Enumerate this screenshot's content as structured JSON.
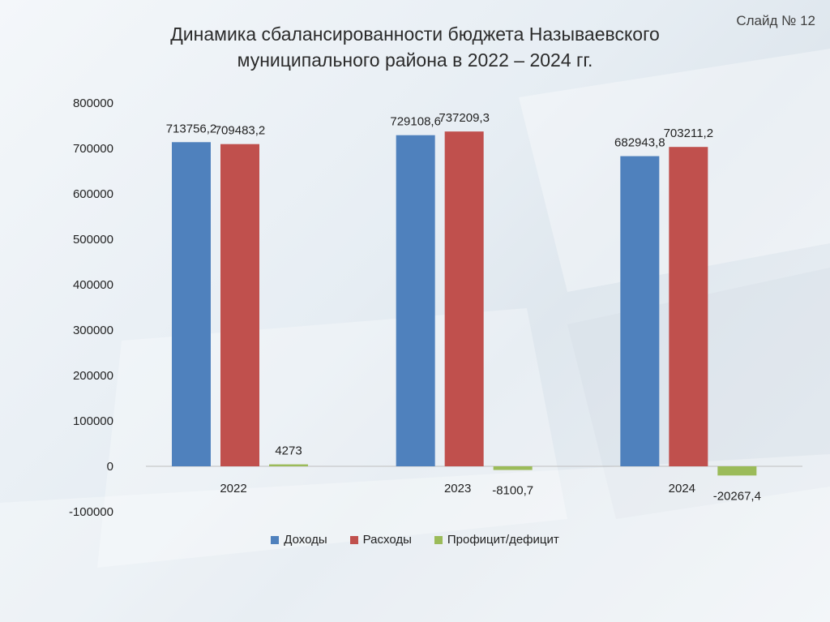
{
  "slide_label": "Слайд № 12",
  "title_lines": [
    "Динамика сбалансированности бюджета Называевского",
    "муниципального района в 2022 – 2024 гг."
  ],
  "colors": {
    "income": "#4f81bd",
    "expense": "#c0504d",
    "balance": "#9bbb59"
  },
  "chart_data": {
    "type": "bar",
    "categories": [
      "2022",
      "2023",
      "2024"
    ],
    "series": [
      {
        "name": "Доходы",
        "values": [
          713756.2,
          729108.6,
          682943.8
        ],
        "labels": [
          "713756,2",
          "729108,6",
          "682943,8"
        ]
      },
      {
        "name": "Расходы",
        "values": [
          709483.2,
          737209.3,
          703211.2
        ],
        "labels": [
          "709483,2",
          "737209,3",
          "703211,2"
        ]
      },
      {
        "name": "Профицит/дефицит",
        "values": [
          4273,
          -8100.7,
          -20267.4
        ],
        "labels": [
          "4273",
          "-8100,7",
          "-20267,4"
        ]
      }
    ],
    "ylim": [
      -100000,
      800000
    ],
    "yticks": [
      "800000",
      "700000",
      "600000",
      "500000",
      "400000",
      "300000",
      "200000",
      "100000",
      "0",
      "-100000"
    ],
    "ytick_values": [
      800000,
      700000,
      600000,
      500000,
      400000,
      300000,
      200000,
      100000,
      0,
      -100000
    ],
    "legend_position": "bottom"
  }
}
